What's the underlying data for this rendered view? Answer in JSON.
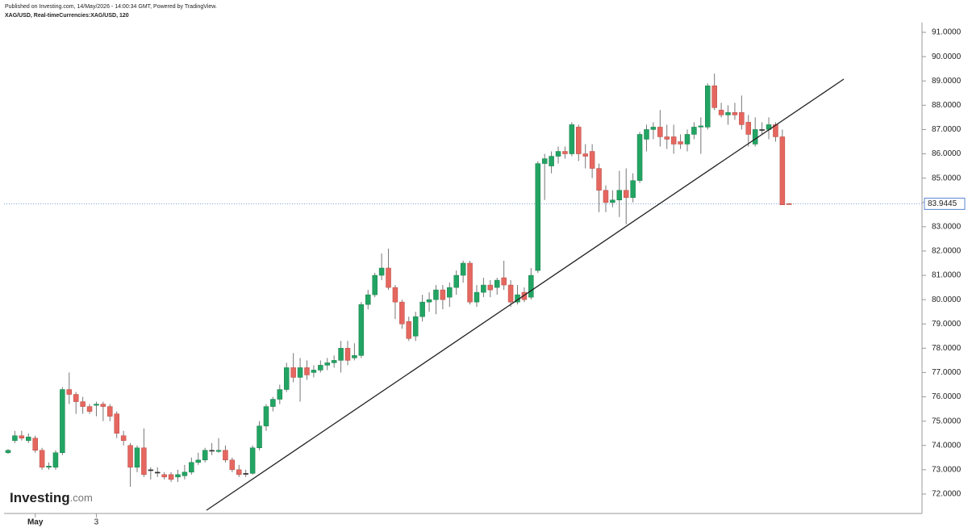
{
  "chart_data": {
    "type": "candlestick",
    "published": "Published on Investing.com, 14/May/2026 - 14:00:34 GMT, Powered by TradingView.",
    "symbol": "XAG/USD, Real-timeCurrencies:XAG/USD, 120",
    "logo": {
      "name": "Investing",
      "suffix": ".com"
    },
    "categories": [
      null,
      null,
      null,
      null,
      "May",
      null,
      null,
      null,
      null,
      null,
      null,
      null,
      null,
      "3",
      null,
      null,
      null,
      null,
      null,
      null,
      null,
      null,
      null,
      null,
      null,
      null,
      null,
      null,
      null,
      null,
      null,
      null,
      null,
      null,
      null,
      null,
      null,
      null,
      null,
      null,
      null,
      null,
      null,
      null,
      null,
      null,
      null,
      null,
      null,
      null,
      null,
      null,
      null,
      null,
      null,
      null,
      null,
      null,
      null,
      null,
      null,
      null,
      null,
      null,
      null,
      null,
      null,
      null,
      null,
      null,
      null,
      null,
      null,
      null,
      null,
      null,
      null,
      null,
      null,
      null,
      null,
      null,
      null,
      null,
      null,
      null,
      null,
      null,
      null,
      null,
      null,
      null,
      null,
      null,
      null,
      null,
      null,
      null,
      null,
      null,
      null,
      null,
      null,
      null,
      null,
      null,
      null,
      null,
      null,
      null,
      null,
      null,
      null,
      null,
      null,
      null
    ],
    "series": {
      "open": [
        73.7,
        74.2,
        74.4,
        74.2,
        74.3,
        73.8,
        73.1,
        73.1,
        73.7,
        76.3,
        76.1,
        75.8,
        75.6,
        75.65,
        75.7,
        75.6,
        75.3,
        74.4,
        74.0,
        73.1,
        73.9,
        73.0,
        72.9,
        72.8,
        72.8,
        72.7,
        72.75,
        72.9,
        73.3,
        73.4,
        73.8,
        73.75,
        73.8,
        73.4,
        73.0,
        72.85,
        72.85,
        73.9,
        74.8,
        75.6,
        75.9,
        76.3,
        77.2,
        76.8,
        77.2,
        77.0,
        77.1,
        77.3,
        77.4,
        77.5,
        78.0,
        77.6,
        77.7,
        79.8,
        80.2,
        81.0,
        81.3,
        80.5,
        79.9,
        79.1,
        78.5,
        79.3,
        79.9,
        80.0,
        80.4,
        80.1,
        80.5,
        81.0,
        81.5,
        79.9,
        80.3,
        80.6,
        80.5,
        80.9,
        80.6,
        79.9,
        80.3,
        80.1,
        81.2,
        85.6,
        85.5,
        85.9,
        86.1,
        86.0,
        87.1,
        86.0,
        86.1,
        85.4,
        84.5,
        84.0,
        84.1,
        84.5,
        84.2,
        84.9,
        86.6,
        87.0,
        87.1,
        86.7,
        86.7,
        86.5,
        86.4,
        86.8,
        87.1,
        87.1,
        88.8,
        87.8,
        87.6,
        87.7,
        87.7,
        87.3,
        86.4,
        87.0,
        87.0,
        87.2,
        86.7,
        83.95
      ],
      "high": [
        73.85,
        74.6,
        74.6,
        74.5,
        74.4,
        73.9,
        73.3,
        73.8,
        76.4,
        77.0,
        76.2,
        76.0,
        75.7,
        75.8,
        75.8,
        75.7,
        75.4,
        74.6,
        74.1,
        74.0,
        74.7,
        73.1,
        73.1,
        72.9,
        72.9,
        73.0,
        73.2,
        73.5,
        73.7,
        73.9,
        74.1,
        74.3,
        74.0,
        73.5,
        73.2,
        73.0,
        74.0,
        75.0,
        75.7,
        76.0,
        76.5,
        77.4,
        77.8,
        77.6,
        77.5,
        77.3,
        77.5,
        77.6,
        77.7,
        78.3,
        78.3,
        78.2,
        79.9,
        80.4,
        81.1,
        81.9,
        82.1,
        80.6,
        80.0,
        79.3,
        79.5,
        80.2,
        80.3,
        80.6,
        80.6,
        80.7,
        81.2,
        81.6,
        81.6,
        80.6,
        80.9,
        80.8,
        80.9,
        81.6,
        80.8,
        80.6,
        80.5,
        81.3,
        85.7,
        86.0,
        86.1,
        86.3,
        86.3,
        87.3,
        87.2,
        86.4,
        86.4,
        85.6,
        84.7,
        84.5,
        85.3,
        85.4,
        85.2,
        86.9,
        87.2,
        87.3,
        87.8,
        87.2,
        87.2,
        86.8,
        87.0,
        87.3,
        87.5,
        88.9,
        89.3,
        88.1,
        88.0,
        88.1,
        88.4,
        87.6,
        87.5,
        87.3,
        87.5,
        87.3,
        87.0,
        83.98
      ],
      "low": [
        73.65,
        74.1,
        74.2,
        74.1,
        73.7,
        73.0,
        73.0,
        73.0,
        73.6,
        75.7,
        75.3,
        75.3,
        75.3,
        75.2,
        75.0,
        75.0,
        74.3,
        74.0,
        72.3,
        72.9,
        72.7,
        72.6,
        72.7,
        72.6,
        72.5,
        72.5,
        72.6,
        72.8,
        73.2,
        73.3,
        73.6,
        73.7,
        73.3,
        72.9,
        72.7,
        72.7,
        72.8,
        73.8,
        74.6,
        75.4,
        75.7,
        76.2,
        76.6,
        75.8,
        76.7,
        76.8,
        77.0,
        77.1,
        77.2,
        77.0,
        77.3,
        77.5,
        77.6,
        79.6,
        80.1,
        80.8,
        80.4,
        79.2,
        78.8,
        78.3,
        78.3,
        79.1,
        79.5,
        79.4,
        79.6,
        79.7,
        80.2,
        80.7,
        79.8,
        79.7,
        80.1,
        80.1,
        80.2,
        80.4,
        79.7,
        79.8,
        79.9,
        80.0,
        81.1,
        84.1,
        85.2,
        85.6,
        85.8,
        85.9,
        85.7,
        85.4,
        85.0,
        83.6,
        83.6,
        83.8,
        83.4,
        83.1,
        84.0,
        84.8,
        86.1,
        86.6,
        86.3,
        86.2,
        86.0,
        86.2,
        86.1,
        86.6,
        86.0,
        87.0,
        87.8,
        87.5,
        87.2,
        87.4,
        87.0,
        86.3,
        86.3,
        86.8,
        86.6,
        86.5,
        83.9,
        83.92
      ],
      "close": [
        73.8,
        74.4,
        74.3,
        74.35,
        73.8,
        73.1,
        73.15,
        73.7,
        76.3,
        76.1,
        75.8,
        75.6,
        75.4,
        75.7,
        75.6,
        75.2,
        74.5,
        74.2,
        73.1,
        73.9,
        72.8,
        73.0,
        72.9,
        72.7,
        72.6,
        72.8,
        72.9,
        73.3,
        73.4,
        73.8,
        73.8,
        73.8,
        73.4,
        73.0,
        72.8,
        72.85,
        73.9,
        74.8,
        75.6,
        75.9,
        76.3,
        77.2,
        76.8,
        77.2,
        76.9,
        77.1,
        77.3,
        77.4,
        77.5,
        78.0,
        77.5,
        77.7,
        79.8,
        80.2,
        81.0,
        81.3,
        80.5,
        79.9,
        79.0,
        78.4,
        79.3,
        79.9,
        80.0,
        80.4,
        80.0,
        80.5,
        81.0,
        81.5,
        79.9,
        80.3,
        80.6,
        80.4,
        80.8,
        80.6,
        79.9,
        80.2,
        80.0,
        81.0,
        85.6,
        85.8,
        85.9,
        86.1,
        86.0,
        87.2,
        86.0,
        85.9,
        85.4,
        84.5,
        84.0,
        84.1,
        84.5,
        84.2,
        84.9,
        86.8,
        87.0,
        87.1,
        86.7,
        86.6,
        86.4,
        86.4,
        86.8,
        87.1,
        87.15,
        88.8,
        87.9,
        87.6,
        87.7,
        87.6,
        87.2,
        86.8,
        87.0,
        87.0,
        87.2,
        86.7,
        83.9,
        83.9445
      ]
    },
    "up_color": "#22a463",
    "down_color": "#e5675f",
    "ylim": [
      71.2,
      91.4
    ],
    "yticks": [
      {
        "value": 72,
        "label": "72.0000"
      },
      {
        "value": 73,
        "label": "73.0000"
      },
      {
        "value": 74,
        "label": "74.0000"
      },
      {
        "value": 75,
        "label": "75.0000"
      },
      {
        "value": 76,
        "label": "76.0000"
      },
      {
        "value": 77,
        "label": "77.0000"
      },
      {
        "value": 78,
        "label": "78.0000"
      },
      {
        "value": 79,
        "label": "79.0000"
      },
      {
        "value": 80,
        "label": "80.0000"
      },
      {
        "value": 81,
        "label": "81.0000"
      },
      {
        "value": 82,
        "label": "82.0000"
      },
      {
        "value": 83,
        "label": "83.0000"
      },
      {
        "value": 84,
        "label": "84.0000"
      },
      {
        "value": 85,
        "label": "85.0000"
      },
      {
        "value": 86,
        "label": "86.0000"
      },
      {
        "value": 87,
        "label": "87.0000"
      },
      {
        "value": 88,
        "label": "88.0000"
      },
      {
        "value": 89,
        "label": "89.0000"
      },
      {
        "value": 90,
        "label": "90.0000"
      },
      {
        "value": 91,
        "label": "91.0000"
      }
    ]
  }
}
